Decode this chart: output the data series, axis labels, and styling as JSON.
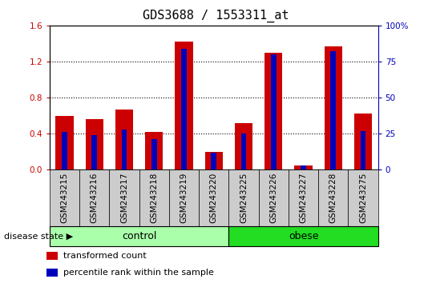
{
  "title": "GDS3688 / 1553311_at",
  "samples": [
    "GSM243215",
    "GSM243216",
    "GSM243217",
    "GSM243218",
    "GSM243219",
    "GSM243220",
    "GSM243225",
    "GSM243226",
    "GSM243227",
    "GSM243228",
    "GSM243275"
  ],
  "transformed_count": [
    0.6,
    0.565,
    0.67,
    0.42,
    1.42,
    0.195,
    0.52,
    1.3,
    0.05,
    1.365,
    0.62
  ],
  "percentile_rank": [
    26,
    24,
    28,
    21,
    84,
    12,
    25,
    80,
    3,
    82,
    27
  ],
  "groups": [
    {
      "label": "control",
      "start": 0,
      "end": 5,
      "color": "#AAFFAA"
    },
    {
      "label": "obese",
      "start": 6,
      "end": 10,
      "color": "#22DD22"
    }
  ],
  "ylim_left": [
    0,
    1.6
  ],
  "ylim_right": [
    0,
    100
  ],
  "yticks_left": [
    0,
    0.4,
    0.8,
    1.2,
    1.6
  ],
  "yticks_right": [
    0,
    25,
    50,
    75,
    100
  ],
  "ytick_labels_right": [
    "0",
    "25",
    "50",
    "75",
    "100%"
  ],
  "red_color": "#CC0000",
  "blue_color": "#0000BB",
  "bar_bg_color": "#CCCCCC",
  "title_fontsize": 11,
  "tick_fontsize": 7.5,
  "bar_width": 0.6,
  "blue_bar_width": 0.18,
  "legend_items": [
    "transformed count",
    "percentile rank within the sample"
  ],
  "disease_state_label": "disease state"
}
